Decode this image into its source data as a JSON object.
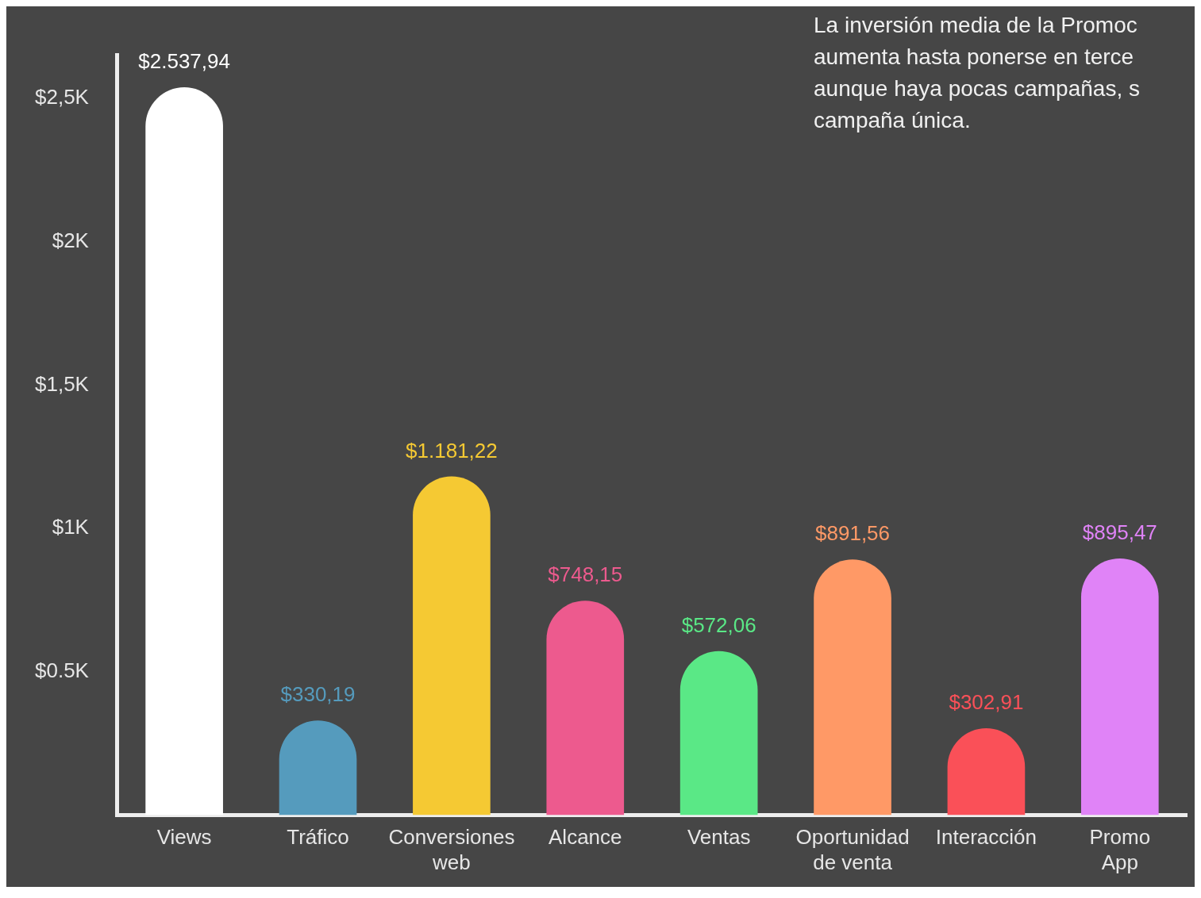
{
  "chart_data": {
    "type": "bar",
    "categories": [
      "Views",
      "Tráfico",
      "Conversiones web",
      "Alcance",
      "Ventas",
      "Oportunidad de venta",
      "Interacción",
      "Promo App"
    ],
    "values": [
      2537.94,
      330.19,
      1181.22,
      748.15,
      572.06,
      891.56,
      302.91,
      895.47
    ],
    "colors": [
      "#ffffff",
      "#559bbd",
      "#f5c933",
      "#ed5a8e",
      "#5ae886",
      "#ff9966",
      "#fa5058",
      "#e083f7"
    ],
    "value_labels": [
      "$2.537,94",
      "$330,19",
      "$1.181,22",
      "$748,15",
      "$572,06",
      "$891,56",
      "$302,91",
      "$895,47"
    ],
    "ylim": [
      0,
      2650
    ],
    "yticks": [
      {
        "value": 500,
        "label": "$0.5K"
      },
      {
        "value": 1000,
        "label": "$1K"
      },
      {
        "value": 1500,
        "label": "$1,5K"
      },
      {
        "value": 2000,
        "label": "$2K"
      },
      {
        "value": 2500,
        "label": "$2,5K"
      }
    ],
    "grid": false,
    "legend": false,
    "annotations": [
      "La inversión media de la Promoc aumenta hasta ponerse en terce aunque haya pocas campañas, s campaña única."
    ]
  }
}
